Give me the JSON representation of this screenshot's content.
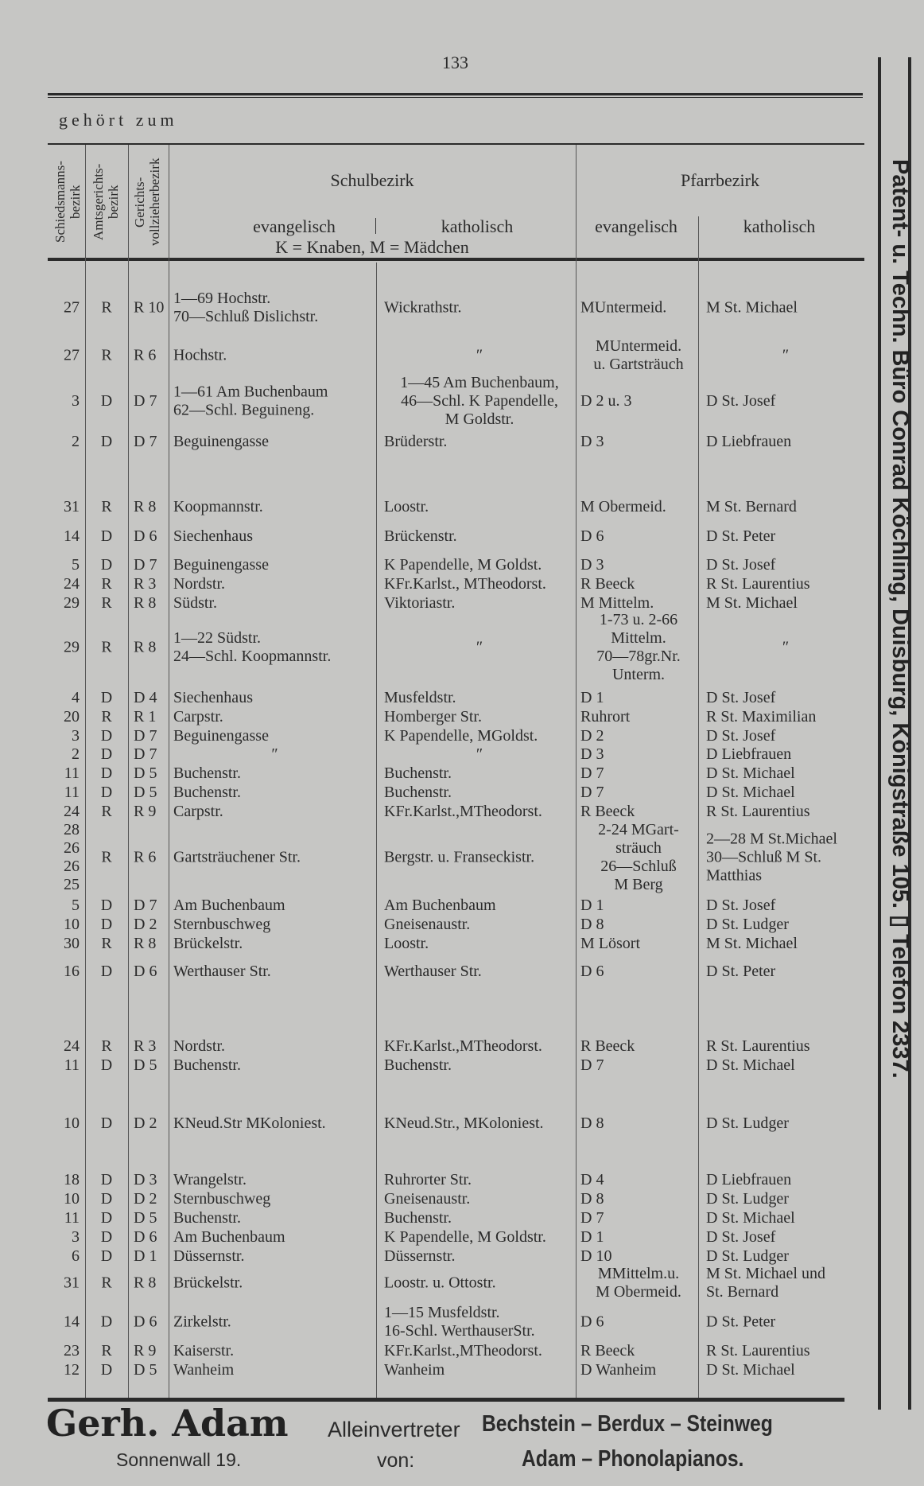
{
  "page_number": "133",
  "heading": "gehört zum",
  "columns": {
    "schiedsmann": "Schiedsmanns-\nbezirk",
    "amtsgericht": "Amtsgerichts-\nbezirk",
    "gerichtsvollzieher": "Gerichts-\nvollzieherbezirk",
    "schulbezirk": "Schulbezirk",
    "schul_ev": "evangelisch",
    "schul_kath": "katholisch",
    "schul_legend": "K = Knaben, M = Mädchen",
    "pfarrbezirk": "Pfarrbezirk",
    "pfarr_ev": "evangelisch",
    "pfarr_kath": "katholisch"
  },
  "rows": [
    {
      "num": "27",
      "amt": "R",
      "ger": "R 10",
      "evs": "1—69 Hochstr.\n70—Schluß Dislichstr.",
      "kas": "Wickrathstr.",
      "evp": "MUntermeid.",
      "kap": "M St. Michael"
    },
    {
      "num": "27",
      "amt": "R",
      "ger": "R 6",
      "evs": "Hochstr.",
      "kas": "″",
      "evp": "MUntermeid.\nu. Gartsträuch",
      "kap": "″"
    },
    {
      "num": "3",
      "amt": "D",
      "ger": "D 7",
      "evs": "1—61 Am Buchenbaum\n62—Schl. Beguineng.",
      "kas": "1—45 Am Buchenbaum,\n46—Schl. K Papendelle,\nM Goldstr.",
      "evp": "D 2 u. 3",
      "kap": "D St. Josef"
    },
    {
      "num": "2",
      "amt": "D",
      "ger": "D 7",
      "evs": "Beguinengasse",
      "kas": "Brüderstr.",
      "evp": "D 3",
      "kap": "D Liebfrauen"
    },
    {
      "num": "31",
      "amt": "R",
      "ger": "R 8",
      "evs": "Koopmannstr.",
      "kas": "Loostr.",
      "evp": "M Obermeid.",
      "kap": "M St. Bernard"
    },
    {
      "num": "14",
      "amt": "D",
      "ger": "D 6",
      "evs": "Siechenhaus",
      "kas": "Brückenstr.",
      "evp": "D 6",
      "kap": "D St. Peter"
    },
    {
      "num": "5",
      "amt": "D",
      "ger": "D 7",
      "evs": "Beguinengasse",
      "kas": "K Papendelle, M Goldst.",
      "evp": "D 3",
      "kap": "D St. Josef"
    },
    {
      "num": "24",
      "amt": "R",
      "ger": "R 3",
      "evs": "Nordstr.",
      "kas": "KFr.Karlst., MTheodorst.",
      "evp": "R Beeck",
      "kap": "R St. Laurentius"
    },
    {
      "num": "29",
      "amt": "R",
      "ger": "R 8",
      "evs": "Südstr.",
      "kas": "Viktoriastr.",
      "evp": "M Mittelm.",
      "kap": "M St. Michael"
    },
    {
      "num": "29",
      "amt": "R",
      "ger": "R 8",
      "evs": "1—22 Südstr.\n24—Schl. Koopmannstr.",
      "kas": "″",
      "evp": "1-73 u. 2-66\nMittelm.\n70—78gr.Nr.\nUnterm.",
      "kap": "″"
    },
    {
      "num": "4",
      "amt": "D",
      "ger": "D 4",
      "evs": "Siechenhaus",
      "kas": "Musfeldstr.",
      "evp": "D 1",
      "kap": "D St. Josef"
    },
    {
      "num": "20",
      "amt": "R",
      "ger": "R 1",
      "evs": "Carpstr.",
      "kas": "Homberger Str.",
      "evp": "Ruhrort",
      "kap": "R St. Maximilian"
    },
    {
      "num": "3",
      "amt": "D",
      "ger": "D 7",
      "evs": "Beguinengasse",
      "kas": "K Papendelle, MGoldst.",
      "evp": "D 2",
      "kap": "D St. Josef"
    },
    {
      "num": "2",
      "amt": "D",
      "ger": "D 7",
      "evs": "″",
      "kas": "″",
      "evp": "D 3",
      "kap": "D Liebfrauen"
    },
    {
      "num": "11",
      "amt": "D",
      "ger": "D 5",
      "evs": "Buchenstr.",
      "kas": "Buchenstr.",
      "evp": "D 7",
      "kap": "D St. Michael"
    },
    {
      "num": "11",
      "amt": "D",
      "ger": "D 5",
      "evs": "Buchenstr.",
      "kas": "Buchenstr.",
      "evp": "D 7",
      "kap": "D St. Michael"
    },
    {
      "num": "24",
      "amt": "R",
      "ger": "R 9",
      "evs": "Carpstr.",
      "kas": "KFr.Karlst.,MTheodorst.",
      "evp": "R Beeck",
      "kap": "R St. Laurentius"
    },
    {
      "num": "28\n26\n26\n25",
      "amt": "R",
      "ger": "R 6",
      "evs": "Gartsträuchener Str.",
      "kas": "Bergstr. u. Franseckistr.",
      "evp": "2-24 MGart-\nsträuch\n26—Schluß\nM Berg",
      "kap": "2—28 M St.Michael\n30—Schluß M St.\nMatthias"
    },
    {
      "num": "5",
      "amt": "D",
      "ger": "D 7",
      "evs": "Am Buchenbaum",
      "kas": "Am Buchenbaum",
      "evp": "D 1",
      "kap": "D St. Josef"
    },
    {
      "num": "10",
      "amt": "D",
      "ger": "D 2",
      "evs": "Sternbuschweg",
      "kas": "Gneisenaustr.",
      "evp": "D 8",
      "kap": "D St. Ludger"
    },
    {
      "num": "30",
      "amt": "R",
      "ger": "R 8",
      "evs": "Brückelstr.",
      "kas": "Loostr.",
      "evp": "M Lösort",
      "kap": "M St. Michael"
    },
    {
      "num": "16",
      "amt": "D",
      "ger": "D 6",
      "evs": "Werthauser Str.",
      "kas": "Werthauser Str.",
      "evp": "D 6",
      "kap": "D St. Peter"
    },
    {
      "num": "24",
      "amt": "R",
      "ger": "R 3",
      "evs": "Nordstr.",
      "kas": "KFr.Karlst.,MTheodorst.",
      "evp": "R Beeck",
      "kap": "R St. Laurentius"
    },
    {
      "num": "11",
      "amt": "D",
      "ger": "D 5",
      "evs": "Buchenstr.",
      "kas": "Buchenstr.",
      "evp": "D 7",
      "kap": "D St. Michael"
    },
    {
      "num": "10",
      "amt": "D",
      "ger": "D 2",
      "evs": "KNeud.Str MKoloniest.",
      "kas": "KNeud.Str., MKoloniest.",
      "evp": "D 8",
      "kap": "D St. Ludger"
    },
    {
      "num": "18",
      "amt": "D",
      "ger": "D 3",
      "evs": "Wrangelstr.",
      "kas": "Ruhrorter Str.",
      "evp": "D 4",
      "kap": "D Liebfrauen"
    },
    {
      "num": "10",
      "amt": "D",
      "ger": "D 2",
      "evs": "Sternbuschweg",
      "kas": "Gneisenaustr.",
      "evp": "D 8",
      "kap": "D St. Ludger"
    },
    {
      "num": "11",
      "amt": "D",
      "ger": "D 5",
      "evs": "Buchenstr.",
      "kas": "Buchenstr.",
      "evp": "D 7",
      "kap": "D St. Michael"
    },
    {
      "num": "3",
      "amt": "D",
      "ger": "D 6",
      "evs": "Am Buchenbaum",
      "kas": "K Papendelle, M Goldstr.",
      "evp": "D 1",
      "kap": "D St. Josef"
    },
    {
      "num": "6",
      "amt": "D",
      "ger": "D 1",
      "evs": "Düssernstr.",
      "kas": "Düssernstr.",
      "evp": "D 10",
      "kap": "D St. Ludger"
    },
    {
      "num": "31",
      "amt": "R",
      "ger": "R 8",
      "evs": "Brückelstr.",
      "kas": "Loostr. u. Ottostr.",
      "evp": "MMittelm.u.\nM Obermeid.",
      "kap": "M St. Michael und\nSt. Bernard"
    },
    {
      "num": "14",
      "amt": "D",
      "ger": "D 6",
      "evs": "Zirkelstr.",
      "kas": "1—15 Musfeldstr.\n16-Schl. WerthauserStr.",
      "evp": "D 6",
      "kap": "D St. Peter"
    },
    {
      "num": "23",
      "amt": "R",
      "ger": "R 9",
      "evs": "Kaiserstr.",
      "kas": "KFr.Karlst.,MTheodorst.",
      "evp": "R Beeck",
      "kap": "R St. Laurentius"
    },
    {
      "num": "12",
      "amt": "D",
      "ger": "D 5",
      "evs": "Wanheim",
      "kas": "Wanheim",
      "evp": "D Wanheim",
      "kap": "D St. Michael"
    }
  ],
  "sidebar_ad": "Patent- u. Techn. Büro Conrad Köchling, Duisburg, Königstraße 105. ▯ Telefon 2337.",
  "footer_ad": {
    "name": "Gerh. Adam",
    "address": "Sonnenwall 19.",
    "agent": "Alleinvertreter",
    "von": "von:",
    "brands_line1": "Bechstein – Berdux – Steinweg",
    "brands_line2": "Adam – Phonolapianos."
  },
  "colors": {
    "paper": "#c6c6c4",
    "ink": "#2b2b2b"
  }
}
